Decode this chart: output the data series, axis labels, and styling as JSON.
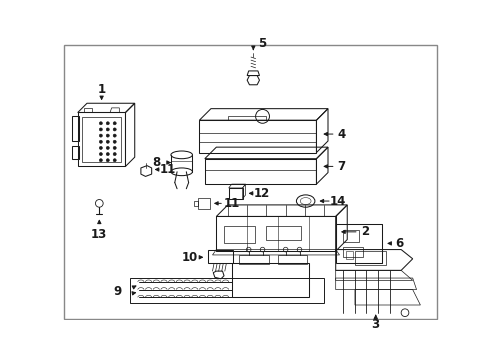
{
  "bg_color": "#ffffff",
  "line_color": "#1a1a1a",
  "fig_width": 4.89,
  "fig_height": 3.6,
  "dpi": 100,
  "lw": 0.75,
  "font_size": 8.5
}
